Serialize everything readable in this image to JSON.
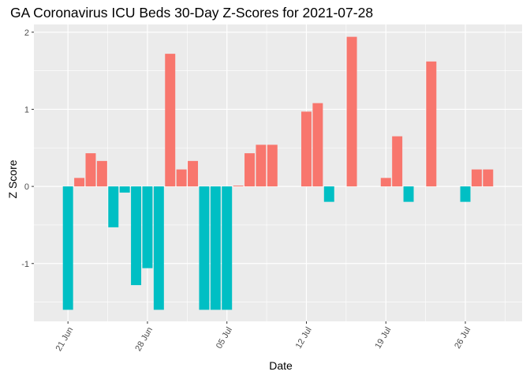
{
  "chart_data": {
    "type": "bar",
    "title": "GA Coronavirus ICU Beds 30-Day Z-Scores for 2021-07-28",
    "xlabel": "Date",
    "ylabel": "Z Score",
    "ylim": [
      -1.75,
      2.1
    ],
    "y_ticks": [
      2,
      1,
      0,
      -1
    ],
    "y_tick_labels": [
      "2",
      "1",
      "0",
      "-1"
    ],
    "x_ticks": [
      {
        "date": "2021-06-21",
        "label": "21 Jun"
      },
      {
        "date": "2021-06-28",
        "label": "28 Jun"
      },
      {
        "date": "2021-07-05",
        "label": "05 Jul"
      },
      {
        "date": "2021-07-12",
        "label": "12 Jul"
      },
      {
        "date": "2021-07-19",
        "label": "19 Jul"
      },
      {
        "date": "2021-07-26",
        "label": "26 Jul"
      }
    ],
    "xlim_dates": [
      "2021-06-18",
      "2021-07-31"
    ],
    "colors": {
      "positive": "#F8766D",
      "negative": "#00BFC4"
    },
    "points": [
      {
        "date": "2021-06-21",
        "value": -1.6
      },
      {
        "date": "2021-06-22",
        "value": 0.11
      },
      {
        "date": "2021-06-23",
        "value": 0.43
      },
      {
        "date": "2021-06-24",
        "value": 0.33
      },
      {
        "date": "2021-06-25",
        "value": -0.53
      },
      {
        "date": "2021-06-26",
        "value": -0.08
      },
      {
        "date": "2021-06-27",
        "value": -1.28
      },
      {
        "date": "2021-06-28",
        "value": -1.06
      },
      {
        "date": "2021-06-29",
        "value": -1.6
      },
      {
        "date": "2021-06-30",
        "value": 1.72
      },
      {
        "date": "2021-07-01",
        "value": 0.22
      },
      {
        "date": "2021-07-02",
        "value": 0.33
      },
      {
        "date": "2021-07-03",
        "value": -1.6
      },
      {
        "date": "2021-07-04",
        "value": -1.6
      },
      {
        "date": "2021-07-05",
        "value": -1.6
      },
      {
        "date": "2021-07-06",
        "value": 0.01
      },
      {
        "date": "2021-07-07",
        "value": 0.43
      },
      {
        "date": "2021-07-08",
        "value": 0.54
      },
      {
        "date": "2021-07-09",
        "value": 0.54
      },
      {
        "date": "2021-07-12",
        "value": 0.97
      },
      {
        "date": "2021-07-13",
        "value": 1.08
      },
      {
        "date": "2021-07-14",
        "value": -0.2
      },
      {
        "date": "2021-07-16",
        "value": 1.94
      },
      {
        "date": "2021-07-19",
        "value": 0.11
      },
      {
        "date": "2021-07-20",
        "value": 0.65
      },
      {
        "date": "2021-07-21",
        "value": -0.2
      },
      {
        "date": "2021-07-23",
        "value": 1.62
      },
      {
        "date": "2021-07-26",
        "value": -0.2
      },
      {
        "date": "2021-07-27",
        "value": 0.22
      },
      {
        "date": "2021-07-28",
        "value": 0.22
      }
    ]
  }
}
